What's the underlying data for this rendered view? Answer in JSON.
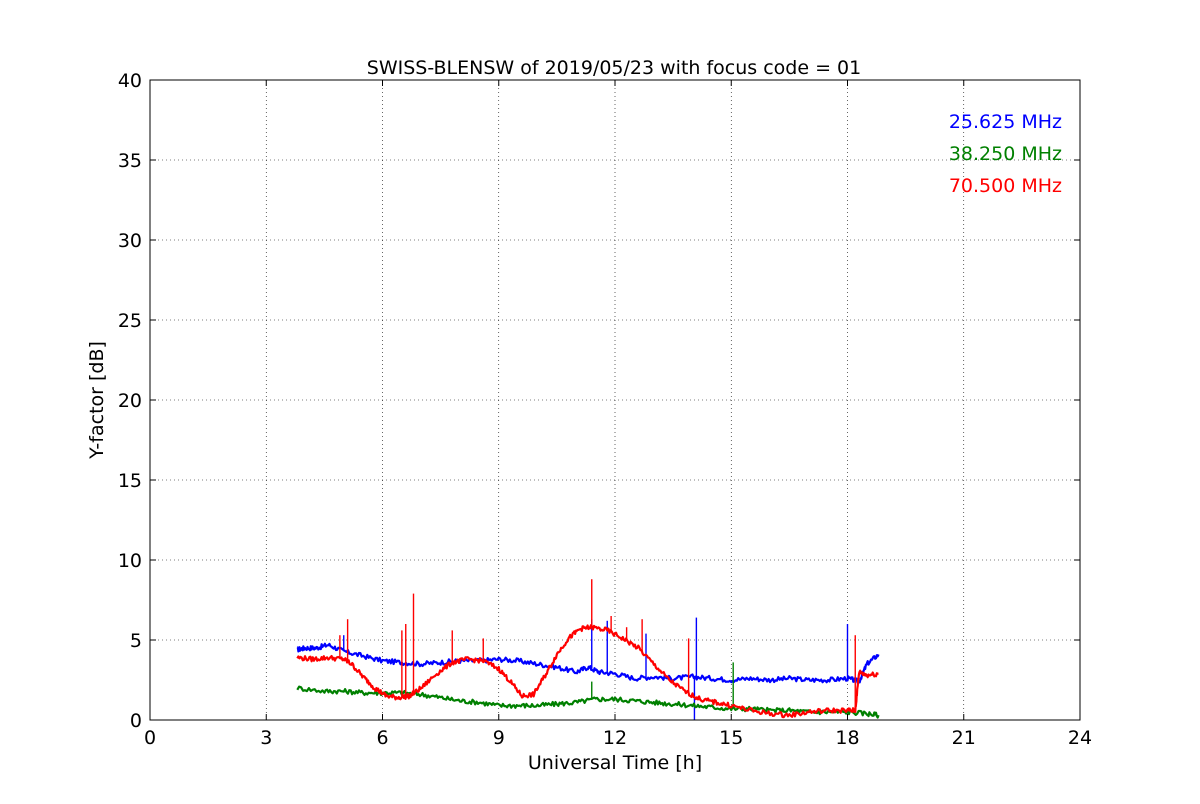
{
  "chart_data": {
    "type": "line",
    "title": "SWISS-BLENSW of 2019/05/23 with focus code = 01",
    "xlabel": "Universal Time [h]",
    "ylabel": "Y-factor [dB]",
    "xlim": [
      0,
      24
    ],
    "ylim": [
      0,
      40
    ],
    "xticks": [
      0,
      3,
      6,
      9,
      12,
      15,
      18,
      21,
      24
    ],
    "yticks": [
      0,
      5,
      10,
      15,
      20,
      25,
      30,
      35,
      40
    ],
    "grid": true,
    "legend_position": "top-right",
    "series": [
      {
        "name": "25.625 MHz",
        "color": "#0000ff",
        "x": [
          3.8,
          4.0,
          4.3,
          4.6,
          5.0,
          5.5,
          6.0,
          6.5,
          7.0,
          7.5,
          8.0,
          8.5,
          9.0,
          9.5,
          10.0,
          10.5,
          11.0,
          11.3,
          11.6,
          12.0,
          12.5,
          13.0,
          13.5,
          14.0,
          14.5,
          15.0,
          15.5,
          16.0,
          16.5,
          17.0,
          17.5,
          18.0,
          18.3,
          18.5,
          18.8
        ],
        "y": [
          4.4,
          4.5,
          4.5,
          4.7,
          4.3,
          4.0,
          3.7,
          3.6,
          3.5,
          3.6,
          3.7,
          3.7,
          3.8,
          3.7,
          3.5,
          3.3,
          3.0,
          3.3,
          3.0,
          2.9,
          2.6,
          2.7,
          2.6,
          2.7,
          2.6,
          2.5,
          2.6,
          2.5,
          2.6,
          2.5,
          2.5,
          2.6,
          2.4,
          3.5,
          4.1
        ],
        "spikes": [
          [
            5.0,
            5.3
          ],
          [
            11.4,
            6.3
          ],
          [
            11.8,
            6.2
          ],
          [
            12.8,
            5.4
          ],
          [
            14.1,
            6.4
          ],
          [
            14.05,
            0.0
          ],
          [
            18.0,
            6.0
          ]
        ]
      },
      {
        "name": "38.250 MHz",
        "color": "#008000",
        "x": [
          3.8,
          4.5,
          5.0,
          5.5,
          6.0,
          6.5,
          7.0,
          7.5,
          8.0,
          8.5,
          9.0,
          9.5,
          10.0,
          10.5,
          11.0,
          11.5,
          12.0,
          12.5,
          13.0,
          13.5,
          14.0,
          14.5,
          15.0,
          15.5,
          16.0,
          16.5,
          17.0,
          17.5,
          18.0,
          18.5,
          18.8
        ],
        "y": [
          2.0,
          1.8,
          1.8,
          1.7,
          1.7,
          1.7,
          1.6,
          1.4,
          1.2,
          1.1,
          0.9,
          0.9,
          0.9,
          1.0,
          1.1,
          1.3,
          1.3,
          1.2,
          1.1,
          1.0,
          0.9,
          0.8,
          0.7,
          0.7,
          0.6,
          0.6,
          0.5,
          0.5,
          0.5,
          0.4,
          0.3
        ],
        "spikes": [
          [
            11.4,
            2.4
          ],
          [
            15.05,
            3.6
          ]
        ]
      },
      {
        "name": "70.500 MHz",
        "color": "#ff0000",
        "x": [
          3.8,
          4.2,
          4.6,
          5.0,
          5.2,
          5.5,
          5.8,
          6.1,
          6.4,
          6.7,
          7.0,
          7.4,
          7.8,
          8.2,
          8.6,
          9.0,
          9.3,
          9.6,
          9.9,
          10.2,
          10.5,
          10.8,
          11.1,
          11.4,
          11.8,
          12.2,
          12.6,
          13.0,
          13.4,
          13.8,
          14.2,
          14.6,
          15.0,
          15.5,
          16.0,
          16.5,
          17.0,
          17.5,
          18.0,
          18.2,
          18.3,
          18.5,
          18.8
        ],
        "y": [
          3.9,
          3.8,
          3.9,
          3.8,
          3.5,
          2.7,
          2.0,
          1.5,
          1.4,
          1.5,
          2.0,
          2.9,
          3.6,
          3.8,
          3.7,
          3.2,
          2.4,
          1.5,
          1.6,
          2.8,
          4.1,
          5.1,
          5.7,
          5.8,
          5.6,
          5.1,
          4.5,
          3.5,
          2.5,
          1.8,
          1.3,
          1.1,
          0.9,
          0.6,
          0.4,
          0.3,
          0.5,
          0.6,
          0.6,
          0.6,
          3.0,
          2.8,
          2.9
        ],
        "spikes": [
          [
            4.9,
            5.3
          ],
          [
            5.1,
            6.3
          ],
          [
            6.5,
            5.6
          ],
          [
            6.6,
            6.0
          ],
          [
            6.8,
            7.9
          ],
          [
            7.8,
            5.6
          ],
          [
            8.6,
            5.1
          ],
          [
            11.4,
            8.8
          ],
          [
            11.9,
            6.5
          ],
          [
            12.3,
            5.8
          ],
          [
            12.7,
            6.3
          ],
          [
            13.9,
            5.1
          ],
          [
            18.2,
            5.3
          ]
        ]
      }
    ]
  }
}
